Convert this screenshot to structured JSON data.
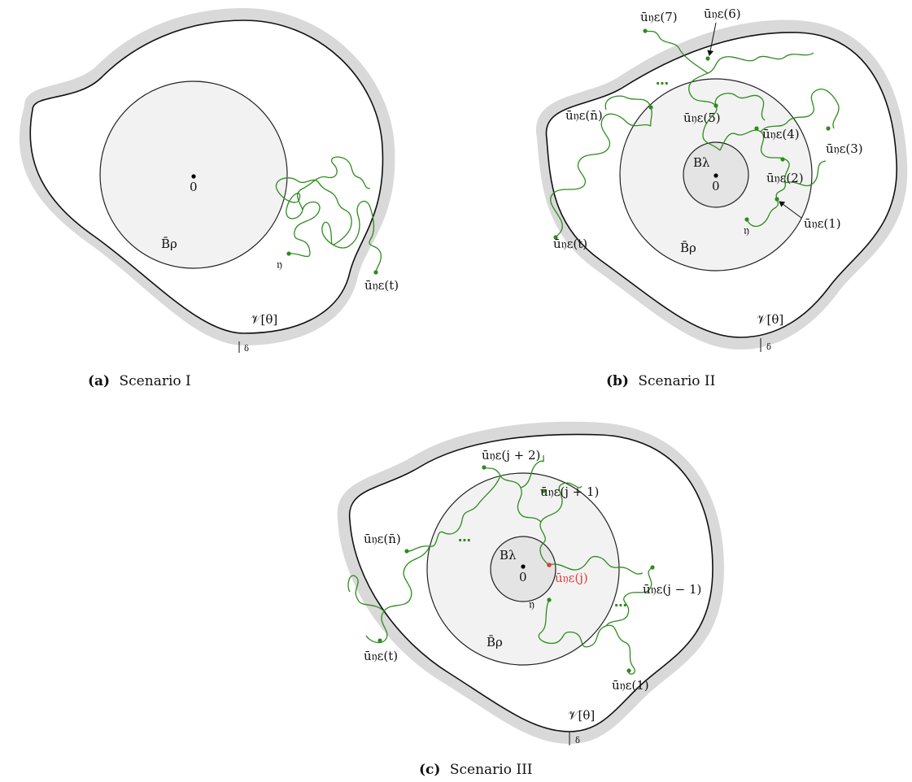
{
  "colors": {
    "path_green": "#2e8b1e",
    "boundary_gray": "#d9d9d9",
    "ball_fill": "#f2f2f2",
    "inner_ball_fill": "#e4e4e4",
    "highlight_red": "#e03c3c"
  },
  "panels": [
    {
      "id": "a",
      "caption_tag": "(a)",
      "caption_text": "Scenario I",
      "labels": {
        "origin": "0",
        "ball": "B̄ρ",
        "start": "𝔶",
        "end": "ū𝔶ε(t)",
        "domain": "𝒱[θ]",
        "delta": "δ"
      }
    },
    {
      "id": "b",
      "caption_tag": "(b)",
      "caption_text": "Scenario II",
      "labels": {
        "origin": "0",
        "inner_ball": "Bλ",
        "ball": "B̄ρ",
        "start": "𝔶",
        "p1": "ū𝔶ε(1)",
        "p2": "ū𝔶ε(2)",
        "p3": "ū𝔶ε(3)",
        "p4": "ū𝔶ε(4)",
        "p5": "ū𝔶ε(5)",
        "p6": "ū𝔶ε(6)",
        "p7": "ū𝔶ε(7)",
        "pn": "ū𝔶ε(n̄)",
        "end": "ū𝔶ε(t)",
        "ellipsis": "⋯",
        "domain": "𝒱[θ]",
        "delta": "δ"
      }
    },
    {
      "id": "c",
      "caption_tag": "(c)",
      "caption_text": "Scenario III",
      "labels": {
        "origin": "0",
        "inner_ball": "Bλ",
        "ball": "B̄ρ",
        "start": "𝔶",
        "p1": "ū𝔶ε(1)",
        "pjm1": "ū𝔶ε(j − 1)",
        "pj": "ū𝔶ε(j)",
        "pjp1": "ū𝔶ε(j + 1)",
        "pjp2": "ū𝔶ε(j + 2)",
        "pn": "ū𝔶ε(n̄)",
        "end": "ū𝔶ε(t)",
        "ellipsis": "⋯",
        "domain": "𝒱[θ]",
        "delta": "δ"
      }
    }
  ]
}
